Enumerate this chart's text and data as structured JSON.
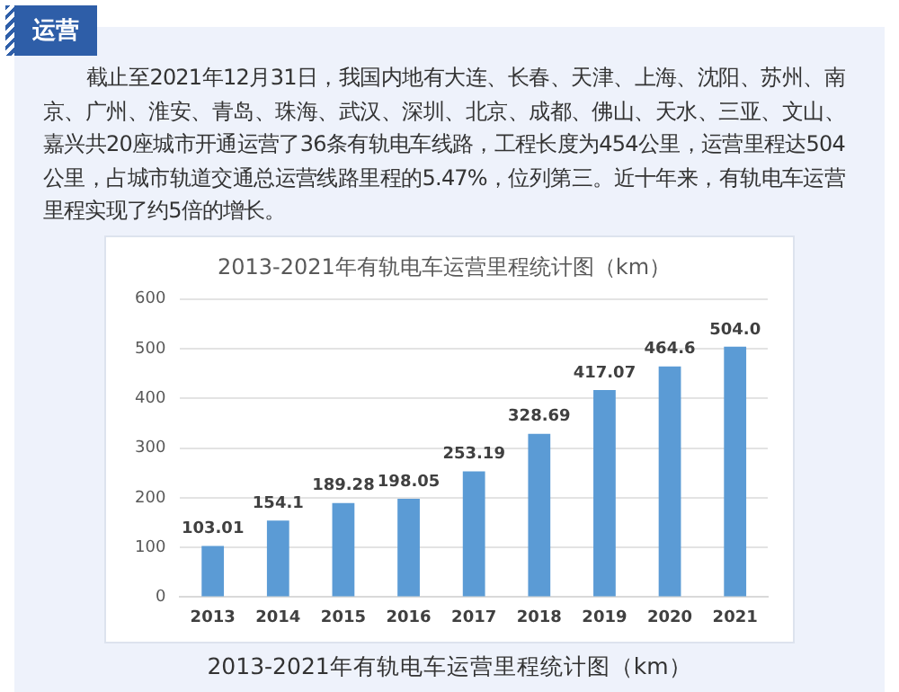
{
  "chart_data": {
    "type": "bar",
    "title": "2013-2021年有轨电车运营里程统计图（km）",
    "categories": [
      "2013",
      "2014",
      "2015",
      "2016",
      "2017",
      "2018",
      "2019",
      "2020",
      "2021"
    ],
    "values": [
      103.01,
      154.1,
      189.28,
      198.05,
      253.19,
      328.69,
      417.07,
      464.6,
      504.0
    ],
    "value_labels": [
      "103.01",
      "154.1",
      "189.28",
      "198.05",
      "253.19",
      "328.69",
      "417.07",
      "464.6",
      "504.0"
    ],
    "color": "#5b9bd5",
    "ylim": [
      0,
      600
    ],
    "yticks": [
      0,
      100,
      200,
      300,
      400,
      500,
      600
    ],
    "grid": "y",
    "annotations": [
      "运营",
      "截止至2021年12月31日，我国内地有大连、长春、天津、上海、沈阳、苏州、南京、广州、淮安、青岛、珠海、武汉、深圳、北京、成都、佛山、天水、三亚、文山、嘉兴共20座城市开通运营了36条有轨电车线路，工程长度为454公里，运营里程达504公里，占城市轨道交通总运营线路里程的5.47%，位列第三。近十年来，有轨电车运营里程实现了约5倍的增长。",
      "2013-2021年有轨电车运营里程统计图（km）"
    ]
  }
}
